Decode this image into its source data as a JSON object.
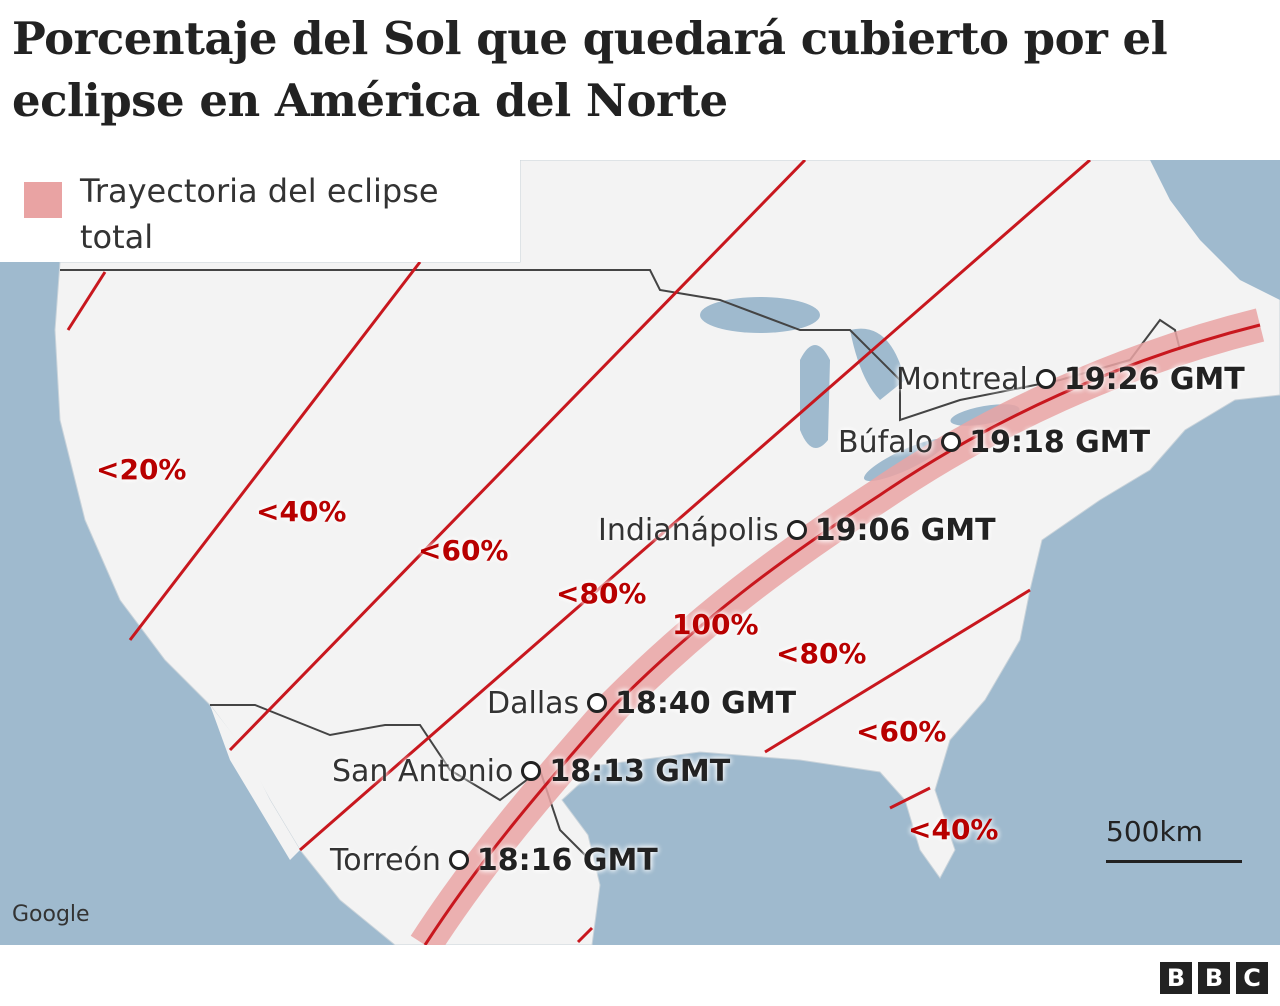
{
  "title": "Porcentaje del Sol que quedará cubierto por el eclipse en América del Norte",
  "legend": {
    "label": "Trayectoria del eclipse total",
    "swatch_color": "#e9a3a3"
  },
  "colors": {
    "water": "#9fbace",
    "land": "#f3f3f3",
    "contour": "#c8171e",
    "label": "#b80000"
  },
  "coverage_labels": [
    "<20%",
    "<40%",
    "<60%",
    "<80%",
    "100%",
    "<80%",
    "<60%",
    "<40%"
  ],
  "cities": [
    {
      "name": "Montreal",
      "time": "19:26 GMT"
    },
    {
      "name": "Búfalo",
      "time": "19:18 GMT"
    },
    {
      "name": "Indianápolis",
      "time": "19:06 GMT"
    },
    {
      "name": "Dallas",
      "time": "18:40 GMT"
    },
    {
      "name": "San Antonio",
      "time": "18:13 GMT"
    },
    {
      "name": "Torreón",
      "time": "18:16 GMT"
    }
  ],
  "scale": "500km",
  "attribution": "Google",
  "logo": "BBC"
}
